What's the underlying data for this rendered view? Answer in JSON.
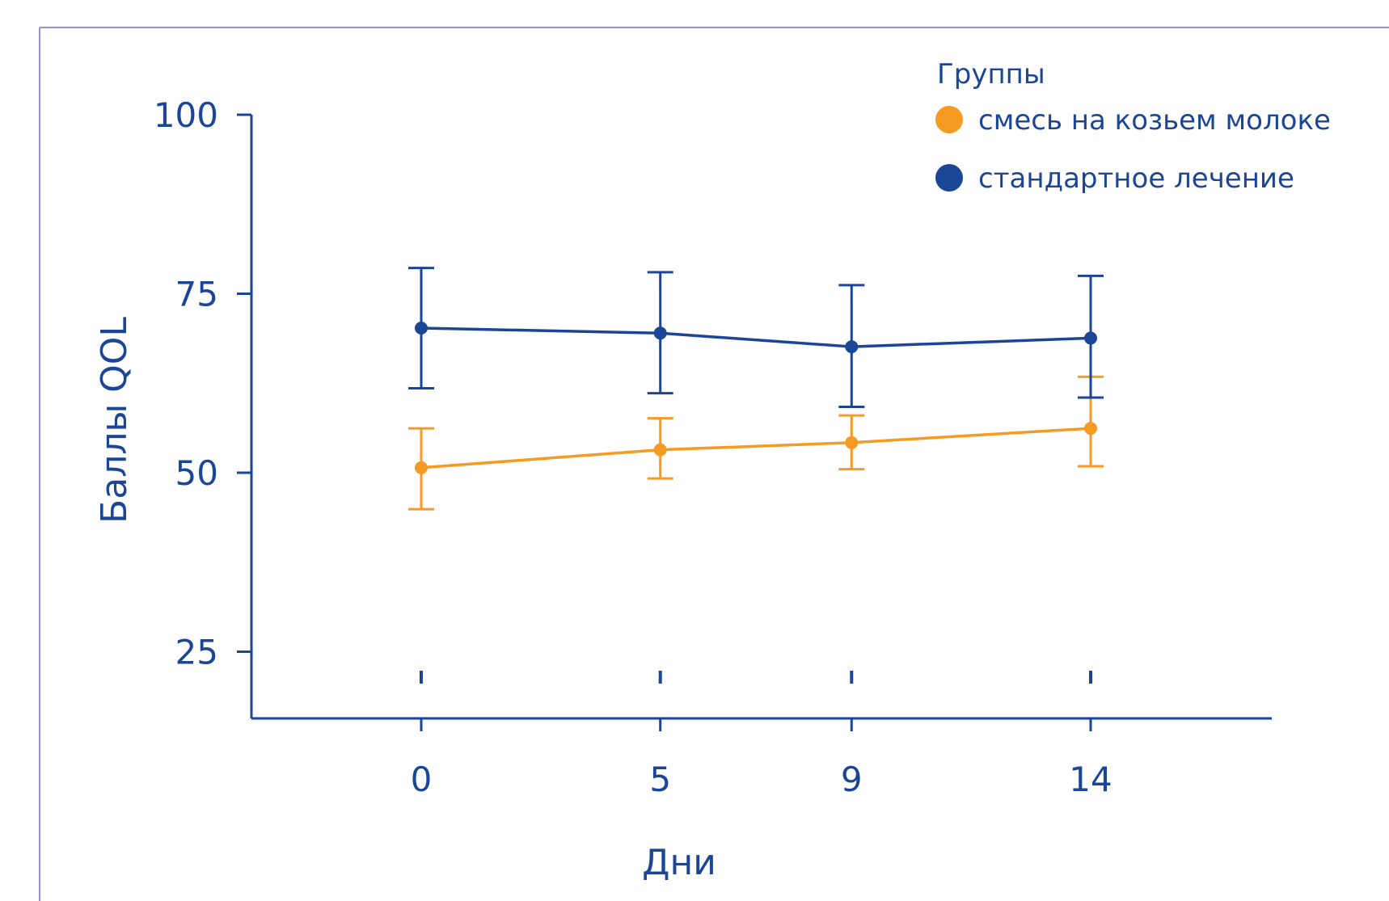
{
  "chart_data": {
    "type": "line",
    "title": "",
    "xlabel": "Дни",
    "ylabel": "Баллы QOL",
    "x": [
      0,
      5,
      9,
      14
    ],
    "x_tick_labels": [
      "0",
      "5",
      "9",
      "14"
    ],
    "y_ticks": [
      25,
      50,
      75,
      100
    ],
    "y_tick_labels": [
      "25",
      "50",
      "75",
      "100"
    ],
    "ylim": [
      0,
      100
    ],
    "legend_title": "Группы",
    "legend_position": "top-right",
    "grid": false,
    "series": [
      {
        "name": "смесь на козьем молоке",
        "color": "#f59a23",
        "values": [
          50.7,
          53.2,
          54.2,
          56.2
        ],
        "error_low": [
          44.9,
          49.2,
          50.5,
          50.9
        ],
        "error_high": [
          56.2,
          57.6,
          58.0,
          63.4
        ]
      },
      {
        "name": "стандартное лечение",
        "color": "#1b4596",
        "values": [
          70.2,
          69.5,
          67.6,
          68.8
        ],
        "error_low": [
          61.8,
          61.1,
          59.2,
          60.5
        ],
        "error_high": [
          78.6,
          78.0,
          76.2,
          77.5
        ]
      }
    ]
  }
}
